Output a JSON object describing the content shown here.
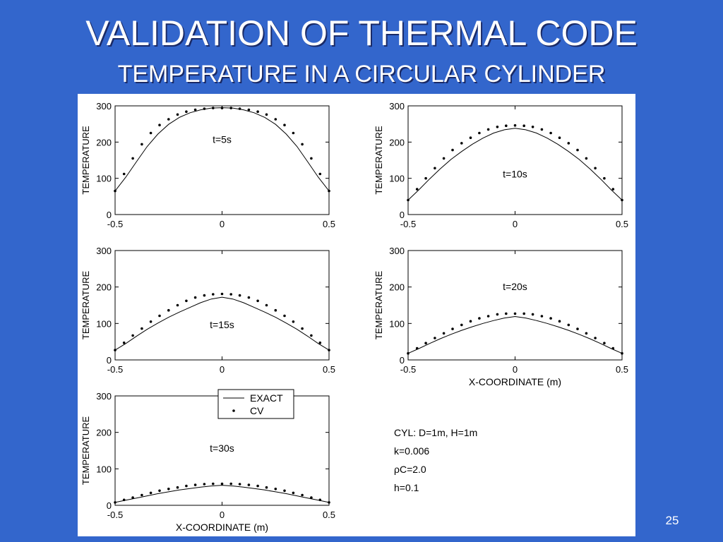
{
  "title": "VALIDATION OF THERMAL CODE",
  "subtitle": "TEMPERATURE IN A CIRCULAR CYLINDER",
  "slide_number": "25",
  "legend": {
    "exact": "EXACT",
    "cv": "CV"
  },
  "params": [
    "CYL: D=1m, H=1m",
    "k=0.006",
    "ρC=2.0",
    "h=0.1"
  ],
  "chart_data": [
    {
      "type": "line",
      "annotation": "t=5s",
      "ylabel": "TEMPERATURE",
      "xlabel": "",
      "xlim": [
        -0.5,
        0.5
      ],
      "ylim": [
        0,
        300
      ],
      "xticks": [
        "-0.5",
        "0",
        "0.5"
      ],
      "yticks": [
        "0",
        "100",
        "200",
        "300"
      ],
      "series": [
        {
          "name": "EXACT",
          "style": "line",
          "x": [
            -0.5,
            -0.45,
            -0.4,
            -0.35,
            -0.3,
            -0.25,
            -0.2,
            -0.15,
            -0.1,
            -0.05,
            0,
            0.05,
            0.1,
            0.15,
            0.2,
            0.25,
            0.3,
            0.35,
            0.4,
            0.45,
            0.5
          ],
          "y": [
            65,
            103,
            146,
            188,
            222,
            249,
            268,
            281,
            289,
            294,
            295,
            294,
            289,
            281,
            268,
            249,
            222,
            188,
            146,
            103,
            65
          ]
        },
        {
          "name": "CV",
          "style": "dots",
          "x": [
            -0.5,
            -0.458,
            -0.417,
            -0.375,
            -0.333,
            -0.292,
            -0.25,
            -0.208,
            -0.167,
            -0.125,
            -0.083,
            -0.042,
            0,
            0.042,
            0.083,
            0.125,
            0.167,
            0.208,
            0.25,
            0.292,
            0.333,
            0.375,
            0.417,
            0.458,
            0.5
          ],
          "y": [
            65,
            112,
            155,
            194,
            225,
            247,
            263,
            276,
            284,
            289,
            292,
            294,
            294,
            294,
            292,
            289,
            284,
            276,
            263,
            247,
            225,
            194,
            155,
            112,
            65
          ]
        }
      ]
    },
    {
      "type": "line",
      "annotation": "t=10s",
      "ylabel": "TEMPERATURE",
      "xlabel": "",
      "xlim": [
        -0.5,
        0.5
      ],
      "ylim": [
        0,
        300
      ],
      "xticks": [
        "-0.5",
        "0",
        "0.5"
      ],
      "yticks": [
        "0",
        "100",
        "200",
        "300"
      ],
      "series": [
        {
          "name": "EXACT",
          "style": "line",
          "x": [
            -0.5,
            -0.45,
            -0.4,
            -0.35,
            -0.3,
            -0.25,
            -0.2,
            -0.15,
            -0.1,
            -0.05,
            0,
            0.05,
            0.1,
            0.15,
            0.2,
            0.25,
            0.3,
            0.35,
            0.4,
            0.45,
            0.5
          ],
          "y": [
            40,
            68,
            98,
            126,
            152,
            174,
            194,
            211,
            225,
            234,
            238,
            234,
            225,
            211,
            194,
            174,
            152,
            126,
            98,
            68,
            40
          ]
        },
        {
          "name": "CV",
          "style": "dots",
          "x": [
            -0.5,
            -0.458,
            -0.417,
            -0.375,
            -0.333,
            -0.292,
            -0.25,
            -0.208,
            -0.167,
            -0.125,
            -0.083,
            -0.042,
            0,
            0.042,
            0.083,
            0.125,
            0.167,
            0.208,
            0.25,
            0.292,
            0.333,
            0.375,
            0.417,
            0.458,
            0.5
          ],
          "y": [
            40,
            70,
            100,
            128,
            155,
            178,
            197,
            212,
            225,
            235,
            242,
            245,
            246,
            245,
            242,
            235,
            225,
            212,
            197,
            178,
            155,
            128,
            100,
            70,
            40
          ]
        }
      ]
    },
    {
      "type": "line",
      "annotation": "t=15s",
      "ylabel": "TEMPERATURE",
      "xlabel": "",
      "xlim": [
        -0.5,
        0.5
      ],
      "ylim": [
        0,
        300
      ],
      "xticks": [
        "-0.5",
        "0",
        "0.5"
      ],
      "yticks": [
        "0",
        "100",
        "200",
        "300"
      ],
      "series": [
        {
          "name": "EXACT",
          "style": "line",
          "x": [
            -0.5,
            -0.45,
            -0.4,
            -0.35,
            -0.3,
            -0.25,
            -0.2,
            -0.15,
            -0.1,
            -0.05,
            0,
            0.05,
            0.1,
            0.15,
            0.2,
            0.25,
            0.3,
            0.35,
            0.4,
            0.45,
            0.5
          ],
          "y": [
            27,
            45,
            65,
            84,
            101,
            117,
            131,
            144,
            157,
            167,
            172,
            167,
            157,
            144,
            131,
            117,
            101,
            84,
            65,
            45,
            27
          ]
        },
        {
          "name": "CV",
          "style": "dots",
          "x": [
            -0.5,
            -0.458,
            -0.417,
            -0.375,
            -0.333,
            -0.292,
            -0.25,
            -0.208,
            -0.167,
            -0.125,
            -0.083,
            -0.042,
            0,
            0.042,
            0.083,
            0.125,
            0.167,
            0.208,
            0.25,
            0.292,
            0.333,
            0.375,
            0.417,
            0.458,
            0.5
          ],
          "y": [
            27,
            47,
            67,
            86,
            105,
            121,
            136,
            150,
            162,
            171,
            177,
            180,
            181,
            180,
            177,
            171,
            162,
            150,
            136,
            121,
            105,
            86,
            67,
            47,
            27
          ]
        }
      ]
    },
    {
      "type": "line",
      "annotation": "t=20s",
      "ylabel": "TEMPERATURE",
      "xlabel": "X-COORDINATE (m)",
      "xlim": [
        -0.5,
        0.5
      ],
      "ylim": [
        0,
        300
      ],
      "xticks": [
        "-0.5",
        "0",
        "0.5"
      ],
      "yticks": [
        "0",
        "100",
        "200",
        "300"
      ],
      "series": [
        {
          "name": "EXACT",
          "style": "line",
          "x": [
            -0.5,
            -0.45,
            -0.4,
            -0.35,
            -0.3,
            -0.25,
            -0.2,
            -0.15,
            -0.1,
            -0.05,
            0,
            0.05,
            0.1,
            0.15,
            0.2,
            0.25,
            0.3,
            0.35,
            0.4,
            0.45,
            0.5
          ],
          "y": [
            18,
            31,
            45,
            58,
            70,
            81,
            91,
            100,
            108,
            115,
            119,
            115,
            108,
            100,
            91,
            81,
            70,
            58,
            45,
            31,
            18
          ]
        },
        {
          "name": "CV",
          "style": "dots",
          "x": [
            -0.5,
            -0.458,
            -0.417,
            -0.375,
            -0.333,
            -0.292,
            -0.25,
            -0.208,
            -0.167,
            -0.125,
            -0.083,
            -0.042,
            0,
            0.042,
            0.083,
            0.125,
            0.167,
            0.208,
            0.25,
            0.292,
            0.333,
            0.375,
            0.417,
            0.458,
            0.5
          ],
          "y": [
            18,
            32,
            46,
            60,
            73,
            85,
            96,
            106,
            114,
            120,
            125,
            127,
            127,
            127,
            125,
            120,
            114,
            106,
            96,
            85,
            73,
            60,
            46,
            32,
            18
          ]
        }
      ]
    },
    {
      "type": "line",
      "annotation": "t=30s",
      "ylabel": "TEMPERATURE",
      "xlabel": "X-COORDINATE (m)",
      "xlim": [
        -0.5,
        0.5
      ],
      "ylim": [
        0,
        300
      ],
      "xticks": [
        "-0.5",
        "0",
        "0.5"
      ],
      "yticks": [
        "0",
        "100",
        "200",
        "300"
      ],
      "series": [
        {
          "name": "EXACT",
          "style": "line",
          "x": [
            -0.5,
            -0.45,
            -0.4,
            -0.35,
            -0.3,
            -0.25,
            -0.2,
            -0.15,
            -0.1,
            -0.05,
            0,
            0.05,
            0.1,
            0.15,
            0.2,
            0.25,
            0.3,
            0.35,
            0.4,
            0.45,
            0.5
          ],
          "y": [
            8,
            14,
            20,
            26,
            32,
            37,
            42,
            46,
            50,
            53,
            55,
            53,
            50,
            46,
            42,
            37,
            32,
            26,
            20,
            14,
            8
          ]
        },
        {
          "name": "CV",
          "style": "dots",
          "x": [
            -0.5,
            -0.458,
            -0.417,
            -0.375,
            -0.333,
            -0.292,
            -0.25,
            -0.208,
            -0.167,
            -0.125,
            -0.083,
            -0.042,
            0,
            0.042,
            0.083,
            0.125,
            0.167,
            0.208,
            0.25,
            0.292,
            0.333,
            0.375,
            0.417,
            0.458,
            0.5
          ],
          "y": [
            8,
            15,
            21,
            28,
            34,
            40,
            45,
            49,
            53,
            56,
            58,
            59,
            59,
            59,
            58,
            56,
            53,
            49,
            45,
            40,
            34,
            28,
            21,
            15,
            8
          ]
        }
      ]
    }
  ]
}
